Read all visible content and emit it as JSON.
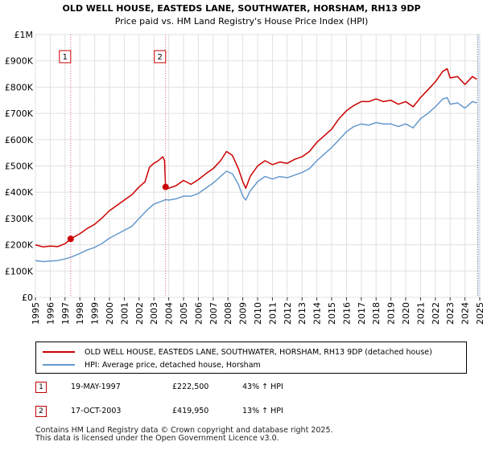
{
  "chart_data": {
    "type": "line",
    "title": "OLD WELL HOUSE, EASTEDS LANE, SOUTHWATER, HORSHAM, RH13 9DP",
    "subtitle": "Price paid vs. HM Land Registry's House Price Index (HPI)",
    "x_range": [
      1995,
      2025
    ],
    "ylim": [
      0,
      1000000
    ],
    "y_ticks": [
      {
        "value": 0,
        "label": "£0"
      },
      {
        "value": 100000,
        "label": "£100K"
      },
      {
        "value": 200000,
        "label": "£200K"
      },
      {
        "value": 300000,
        "label": "£300K"
      },
      {
        "value": 400000,
        "label": "£400K"
      },
      {
        "value": 500000,
        "label": "£500K"
      },
      {
        "value": 600000,
        "label": "£600K"
      },
      {
        "value": 700000,
        "label": "£700K"
      },
      {
        "value": 800000,
        "label": "£800K"
      },
      {
        "value": 900000,
        "label": "£900K"
      },
      {
        "value": 1000000,
        "label": "£1M"
      }
    ],
    "x_ticks": [
      "1995",
      "1996",
      "1997",
      "1998",
      "1999",
      "2000",
      "2001",
      "2002",
      "2003",
      "2004",
      "2005",
      "2006",
      "2007",
      "2008",
      "2009",
      "2010",
      "2011",
      "2012",
      "2013",
      "2014",
      "2015",
      "2016",
      "2017",
      "2018",
      "2019",
      "2020",
      "2021",
      "2022",
      "2023",
      "2024",
      "2025"
    ],
    "grid": true,
    "colors": {
      "property": "#cc0000",
      "hpi": "#6699cc",
      "marker": "#cc0000",
      "vline": "#e06080",
      "shade": "#dde6f2"
    },
    "series": [
      {
        "name": "OLD WELL HOUSE, EASTEDS LANE, SOUTHWATER, HORSHAM, RH13 9DP (detached house)",
        "color": "#cc0000",
        "points": [
          [
            1995.0,
            200000
          ],
          [
            1995.5,
            192000
          ],
          [
            1996.0,
            195000
          ],
          [
            1996.5,
            193000
          ],
          [
            1997.0,
            204000
          ],
          [
            1997.38,
            222500
          ],
          [
            1998.0,
            242000
          ],
          [
            1998.5,
            262000
          ],
          [
            1999.0,
            278000
          ],
          [
            1999.5,
            302000
          ],
          [
            2000.0,
            330000
          ],
          [
            2000.5,
            350000
          ],
          [
            2001.0,
            370000
          ],
          [
            2001.5,
            390000
          ],
          [
            2002.0,
            420000
          ],
          [
            2002.4,
            440000
          ],
          [
            2002.7,
            495000
          ],
          [
            2003.0,
            510000
          ],
          [
            2003.3,
            520000
          ],
          [
            2003.6,
            535000
          ],
          [
            2003.72,
            520000
          ],
          [
            2003.79,
            419950
          ],
          [
            2004.0,
            415000
          ],
          [
            2004.5,
            425000
          ],
          [
            2005.0,
            445000
          ],
          [
            2005.5,
            430000
          ],
          [
            2006.0,
            448000
          ],
          [
            2006.5,
            470000
          ],
          [
            2007.0,
            490000
          ],
          [
            2007.5,
            520000
          ],
          [
            2007.9,
            555000
          ],
          [
            2008.3,
            540000
          ],
          [
            2008.7,
            490000
          ],
          [
            2009.0,
            440000
          ],
          [
            2009.2,
            415000
          ],
          [
            2009.5,
            460000
          ],
          [
            2010.0,
            500000
          ],
          [
            2010.5,
            520000
          ],
          [
            2011.0,
            505000
          ],
          [
            2011.5,
            515000
          ],
          [
            2012.0,
            510000
          ],
          [
            2012.5,
            525000
          ],
          [
            2013.0,
            535000
          ],
          [
            2013.5,
            555000
          ],
          [
            2014.0,
            590000
          ],
          [
            2014.5,
            615000
          ],
          [
            2015.0,
            640000
          ],
          [
            2015.5,
            680000
          ],
          [
            2016.0,
            710000
          ],
          [
            2016.5,
            730000
          ],
          [
            2017.0,
            745000
          ],
          [
            2017.5,
            745000
          ],
          [
            2018.0,
            755000
          ],
          [
            2018.5,
            745000
          ],
          [
            2019.0,
            750000
          ],
          [
            2019.5,
            735000
          ],
          [
            2020.0,
            745000
          ],
          [
            2020.5,
            725000
          ],
          [
            2021.0,
            760000
          ],
          [
            2021.5,
            790000
          ],
          [
            2022.0,
            820000
          ],
          [
            2022.5,
            860000
          ],
          [
            2022.8,
            870000
          ],
          [
            2023.0,
            835000
          ],
          [
            2023.5,
            840000
          ],
          [
            2024.0,
            810000
          ],
          [
            2024.5,
            840000
          ],
          [
            2024.8,
            830000
          ]
        ]
      },
      {
        "name": "HPI: Average price, detached house, Horsham",
        "color": "#6699cc",
        "points": [
          [
            1995.0,
            140000
          ],
          [
            1995.5,
            136000
          ],
          [
            1996.0,
            138000
          ],
          [
            1996.5,
            140000
          ],
          [
            1997.0,
            146000
          ],
          [
            1997.5,
            155000
          ],
          [
            1998.0,
            167000
          ],
          [
            1998.5,
            180000
          ],
          [
            1999.0,
            190000
          ],
          [
            1999.5,
            205000
          ],
          [
            2000.0,
            225000
          ],
          [
            2000.5,
            240000
          ],
          [
            2001.0,
            255000
          ],
          [
            2001.5,
            270000
          ],
          [
            2002.0,
            300000
          ],
          [
            2002.5,
            330000
          ],
          [
            2003.0,
            355000
          ],
          [
            2003.5,
            365000
          ],
          [
            2003.8,
            372000
          ],
          [
            2004.0,
            370000
          ],
          [
            2004.5,
            375000
          ],
          [
            2005.0,
            385000
          ],
          [
            2005.5,
            385000
          ],
          [
            2006.0,
            395000
          ],
          [
            2006.5,
            415000
          ],
          [
            2007.0,
            435000
          ],
          [
            2007.5,
            460000
          ],
          [
            2007.9,
            480000
          ],
          [
            2008.3,
            470000
          ],
          [
            2008.7,
            430000
          ],
          [
            2009.0,
            385000
          ],
          [
            2009.2,
            370000
          ],
          [
            2009.5,
            405000
          ],
          [
            2010.0,
            440000
          ],
          [
            2010.5,
            460000
          ],
          [
            2011.0,
            450000
          ],
          [
            2011.5,
            460000
          ],
          [
            2012.0,
            455000
          ],
          [
            2012.5,
            465000
          ],
          [
            2013.0,
            475000
          ],
          [
            2013.5,
            490000
          ],
          [
            2014.0,
            520000
          ],
          [
            2014.5,
            545000
          ],
          [
            2015.0,
            570000
          ],
          [
            2015.5,
            600000
          ],
          [
            2016.0,
            630000
          ],
          [
            2016.5,
            650000
          ],
          [
            2017.0,
            660000
          ],
          [
            2017.5,
            655000
          ],
          [
            2018.0,
            665000
          ],
          [
            2018.5,
            660000
          ],
          [
            2019.0,
            660000
          ],
          [
            2019.5,
            650000
          ],
          [
            2020.0,
            660000
          ],
          [
            2020.5,
            645000
          ],
          [
            2021.0,
            680000
          ],
          [
            2021.5,
            700000
          ],
          [
            2022.0,
            725000
          ],
          [
            2022.5,
            755000
          ],
          [
            2022.8,
            760000
          ],
          [
            2023.0,
            735000
          ],
          [
            2023.5,
            740000
          ],
          [
            2024.0,
            720000
          ],
          [
            2024.5,
            745000
          ],
          [
            2024.8,
            740000
          ]
        ]
      }
    ],
    "transactions": [
      {
        "label": "1",
        "x": 1997.38,
        "price": 222500,
        "date": "19-MAY-1997",
        "price_text": "£222,500",
        "hpi_text": "43% ↑ HPI"
      },
      {
        "label": "2",
        "x": 2003.79,
        "price": 419950,
        "date": "17-OCT-2003",
        "price_text": "£419,950",
        "hpi_text": "13% ↑ HPI"
      }
    ]
  },
  "legend": {
    "property_label": "OLD WELL HOUSE, EASTEDS LANE, SOUTHWATER, HORSHAM, RH13 9DP (detached house)",
    "hpi_label": "HPI: Average price, detached house, Horsham"
  },
  "table": [
    {
      "label": "1",
      "date": "19-MAY-1997",
      "price": "£222,500",
      "hpi": "43% ↑ HPI"
    },
    {
      "label": "2",
      "date": "17-OCT-2003",
      "price": "£419,950",
      "hpi": "13% ↑ HPI"
    }
  ],
  "footer": {
    "line1": "Contains HM Land Registry data © Crown copyright and database right 2025.",
    "line2": "This data is licensed under the Open Government Licence v3.0."
  }
}
